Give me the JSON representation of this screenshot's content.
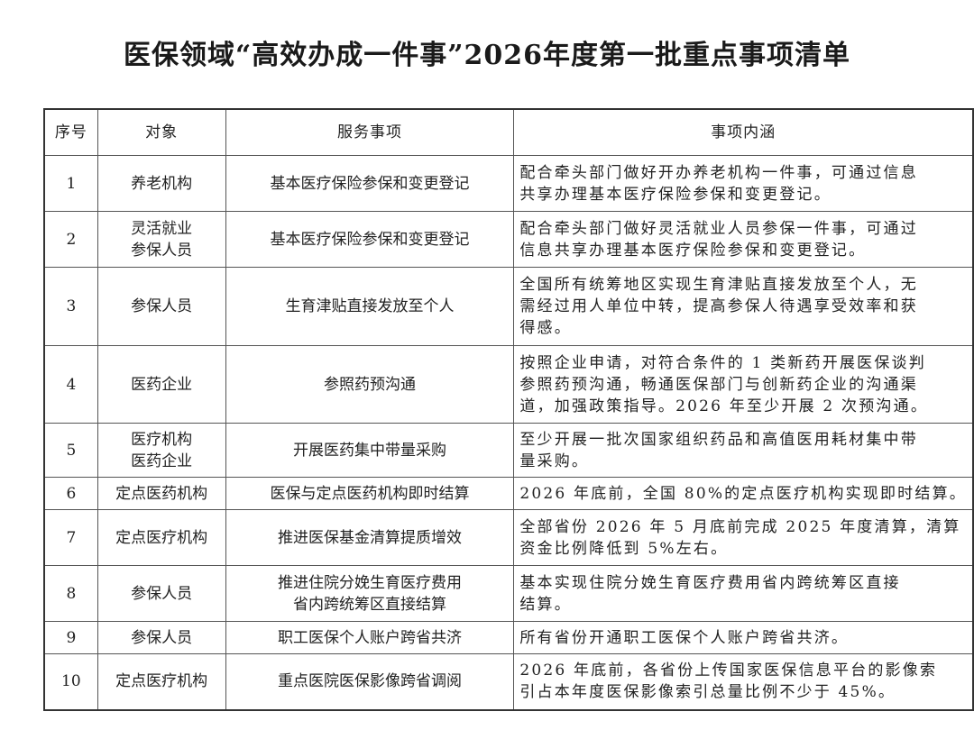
{
  "title": "医保领域“高效办成一件事”2026年度第一批重点事项清单",
  "headers": [
    "序号",
    "对象",
    "服务事项",
    "事项内涵"
  ],
  "rows": [
    {
      "no": "1",
      "target": [
        "养老机构"
      ],
      "service": [
        "基本医疗保险参保和变更登记"
      ],
      "content": [
        "配合牵头部门做好开办养老机构一件事，可通过信息",
        "共享办理基本医疗保险参保和变更登记。"
      ]
    },
    {
      "no": "2",
      "target": [
        "灵活就业",
        "参保人员"
      ],
      "service": [
        "基本医疗保险参保和变更登记"
      ],
      "content": [
        "配合牵头部门做好灵活就业人员参保一件事，可通过",
        "信息共享办理基本医疗保险参保和变更登记。"
      ]
    },
    {
      "no": "3",
      "target": [
        "参保人员"
      ],
      "service": [
        "生育津贴直接发放至个人"
      ],
      "content": [
        "全国所有统筹地区实现生育津贴直接发放至个人，无",
        "需经过用人单位中转，提高参保人待遇享受效率和获",
        "得感。"
      ]
    },
    {
      "no": "4",
      "target": [
        "医药企业"
      ],
      "service": [
        "参照药预沟通"
      ],
      "content": [
        "按照企业申请，对符合条件的 1 类新药开展医保谈判",
        "参照药预沟通，畅通医保部门与创新药企业的沟通渠",
        "道，加强政策指导。2026 年至少开展 2 次预沟通。"
      ]
    },
    {
      "no": "5",
      "target": [
        "医疗机构",
        "医药企业"
      ],
      "service": [
        "开展医药集中带量采购"
      ],
      "content": [
        "至少开展一批次国家组织药品和高值医用耗材集中带",
        "量采购。"
      ]
    },
    {
      "no": "6",
      "target": [
        "定点医药机构"
      ],
      "service": [
        "医保与定点医药机构即时结算"
      ],
      "content": [
        "2026 年底前，全国 80%的定点医疗机构实现即时结算。"
      ]
    },
    {
      "no": "7",
      "target": [
        "定点医疗机构"
      ],
      "service": [
        "推进医保基金清算提质增效"
      ],
      "content": [
        "全部省份 2026 年 5 月底前完成 2025 年度清算，清算",
        "资金比例降低到 5%左右。"
      ]
    },
    {
      "no": "8",
      "target": [
        "参保人员"
      ],
      "service": [
        "推进住院分娩生育医疗费用",
        "省内跨统筹区直接结算"
      ],
      "content": [
        "基本实现住院分娩生育医疗费用省内跨统筹区直接",
        "结算。"
      ]
    },
    {
      "no": "9",
      "target": [
        "参保人员"
      ],
      "service": [
        "职工医保个人账户跨省共济"
      ],
      "content": [
        "所有省份开通职工医保个人账户跨省共济。"
      ]
    },
    {
      "no": "10",
      "target": [
        "定点医疗机构"
      ],
      "service": [
        "重点医院医保影像跨省调阅"
      ],
      "content": [
        "2026 年底前，各省份上传国家医保信息平台的影像索",
        "引占本年度医保影像索引总量比例不少于 45%。"
      ]
    }
  ]
}
